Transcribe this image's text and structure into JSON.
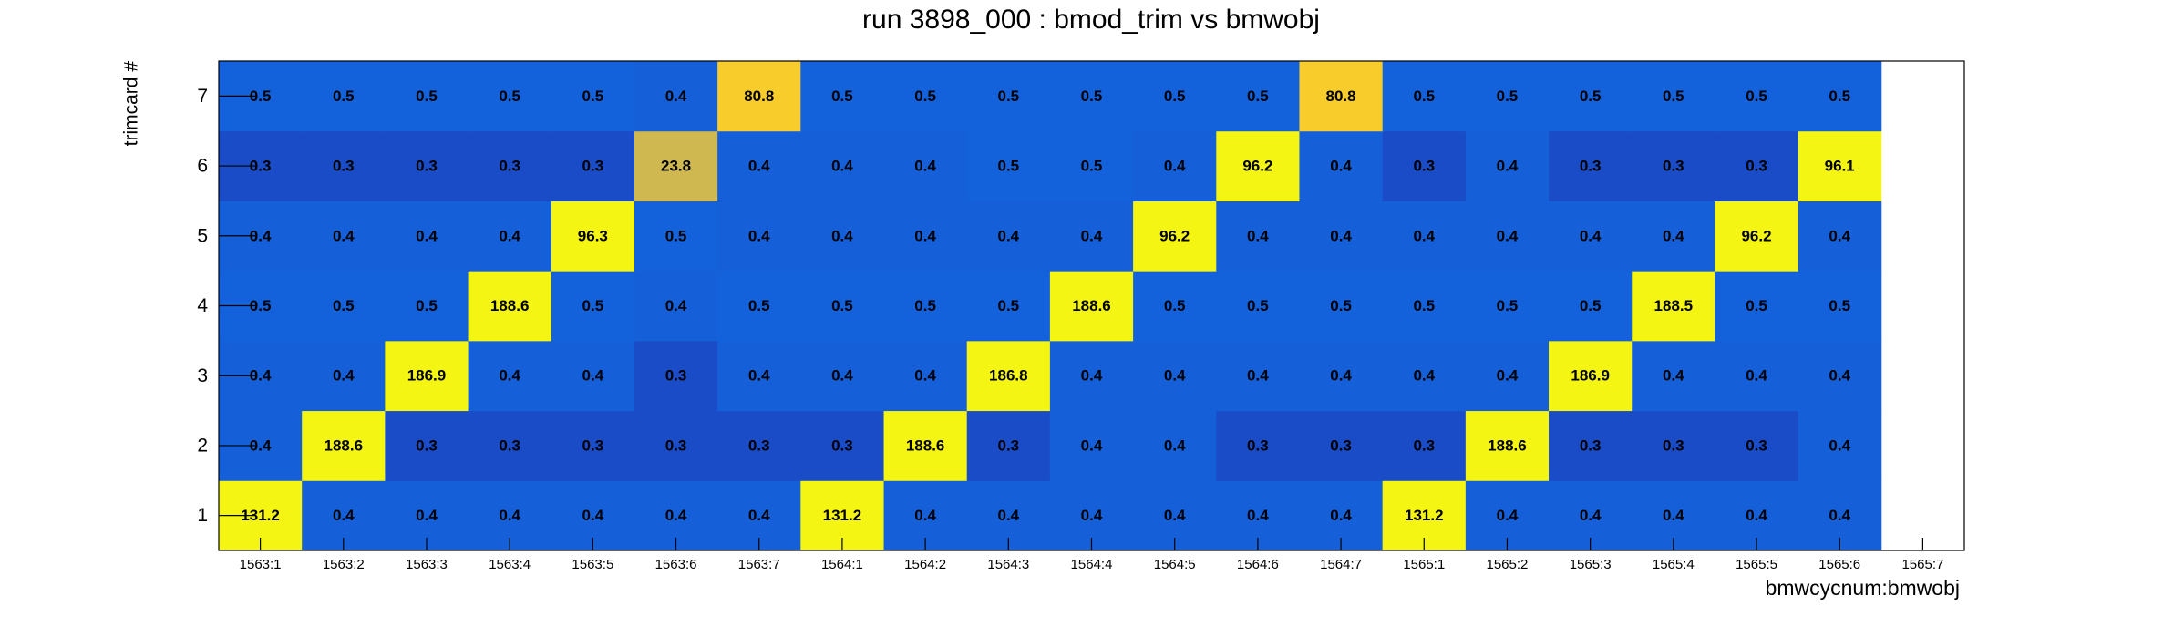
{
  "chart_data": {
    "type": "heatmap",
    "title": "run 3898_000 : bmod_trim vs bmwobj",
    "xlabel": "bmwcycnum:bmwobj",
    "ylabel": "trimcard #",
    "x_categories": [
      "1563:1",
      "1563:2",
      "1563:3",
      "1563:4",
      "1563:5",
      "1563:6",
      "1563:7",
      "1564:1",
      "1564:2",
      "1564:3",
      "1564:4",
      "1564:5",
      "1564:6",
      "1564:7",
      "1565:1",
      "1565:2",
      "1565:3",
      "1565:4",
      "1565:5",
      "1565:6",
      "1565:7"
    ],
    "y_categories": [
      "1",
      "2",
      "3",
      "4",
      "5",
      "6",
      "7"
    ],
    "values": [
      [
        131.2,
        0.4,
        0.4,
        0.4,
        0.4,
        0.4,
        0.4,
        131.2,
        0.4,
        0.4,
        0.4,
        0.4,
        0.4,
        0.4,
        131.2,
        0.4,
        0.4,
        0.4,
        0.4,
        0.4,
        null
      ],
      [
        0.4,
        188.6,
        0.3,
        0.3,
        0.3,
        0.3,
        0.3,
        0.3,
        188.6,
        0.3,
        0.4,
        0.4,
        0.3,
        0.3,
        0.3,
        188.6,
        0.3,
        0.3,
        0.3,
        0.4,
        null
      ],
      [
        0.4,
        0.4,
        186.9,
        0.4,
        0.4,
        0.3,
        0.4,
        0.4,
        0.4,
        186.8,
        0.4,
        0.4,
        0.4,
        0.4,
        0.4,
        0.4,
        186.9,
        0.4,
        0.4,
        0.4,
        null
      ],
      [
        0.5,
        0.5,
        0.5,
        188.6,
        0.5,
        0.4,
        0.5,
        0.5,
        0.5,
        0.5,
        188.6,
        0.5,
        0.5,
        0.5,
        0.5,
        0.5,
        0.5,
        188.5,
        0.5,
        0.5,
        null
      ],
      [
        0.4,
        0.4,
        0.4,
        0.4,
        96.3,
        0.5,
        0.4,
        0.4,
        0.4,
        0.4,
        0.4,
        96.2,
        0.4,
        0.4,
        0.4,
        0.4,
        0.4,
        0.4,
        96.2,
        0.4,
        null
      ],
      [
        0.3,
        0.3,
        0.3,
        0.3,
        0.3,
        23.8,
        0.4,
        0.4,
        0.4,
        0.5,
        0.5,
        0.4,
        96.2,
        0.4,
        0.3,
        0.4,
        0.3,
        0.3,
        0.3,
        96.1,
        null
      ],
      [
        0.5,
        0.5,
        0.5,
        0.5,
        0.5,
        0.4,
        80.8,
        0.5,
        0.5,
        0.5,
        0.5,
        0.5,
        0.5,
        80.8,
        0.5,
        0.5,
        0.5,
        0.5,
        0.5,
        0.5,
        null
      ]
    ]
  }
}
